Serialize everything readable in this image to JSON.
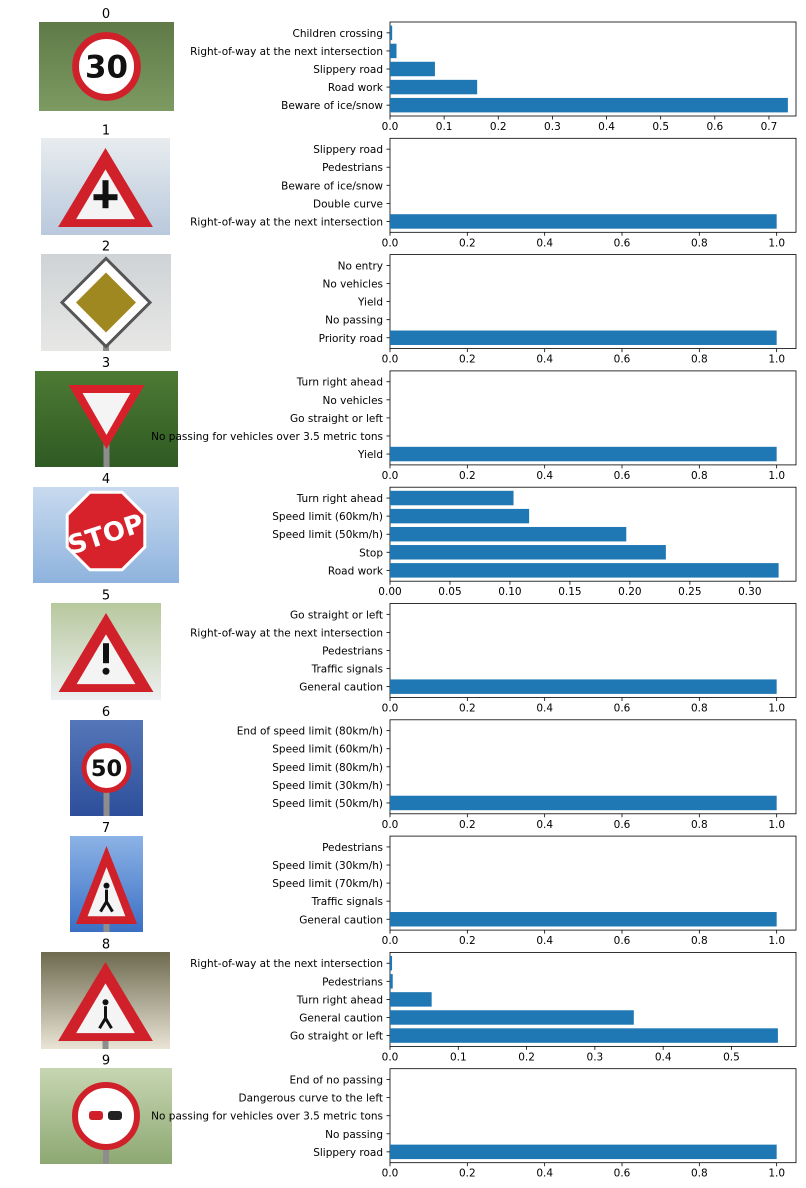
{
  "colors": {
    "bar": "#1f77b4",
    "axis": "#000000"
  },
  "chart_data": [
    {
      "type": "bar",
      "orientation": "horizontal",
      "image_title": "0",
      "sign_image": "speed-limit-30-sign",
      "categories": [
        "Beware of ice/snow",
        "Road work",
        "Slippery road",
        "Right-of-way at the next intersection",
        "Children crossing"
      ],
      "values": [
        0.735,
        0.161,
        0.083,
        0.012,
        0.004
      ],
      "xlim": [
        0,
        0.75
      ],
      "xticks": [
        0,
        0.1,
        0.2,
        0.3,
        0.4,
        0.5,
        0.6,
        0.7
      ],
      "xtick_labels": [
        "0.0",
        "0.1",
        "0.2",
        "0.3",
        "0.4",
        "0.5",
        "0.6",
        "0.7"
      ]
    },
    {
      "type": "bar",
      "orientation": "horizontal",
      "image_title": "1",
      "sign_image": "right-of-way-sign",
      "categories": [
        "Right-of-way at the next intersection",
        "Double curve",
        "Beware of ice/snow",
        "Pedestrians",
        "Slippery road"
      ],
      "values": [
        1.0,
        0,
        0,
        0,
        0
      ],
      "xlim": [
        0,
        1.05
      ],
      "xticks": [
        0,
        0.2,
        0.4,
        0.6,
        0.8,
        1.0
      ],
      "xtick_labels": [
        "0.0",
        "0.2",
        "0.4",
        "0.6",
        "0.8",
        "1.0"
      ]
    },
    {
      "type": "bar",
      "orientation": "horizontal",
      "image_title": "2",
      "sign_image": "priority-road-sign",
      "categories": [
        "Priority road",
        "No passing",
        "Yield",
        "No vehicles",
        "No entry"
      ],
      "values": [
        1.0,
        0,
        0,
        0,
        0
      ],
      "xlim": [
        0,
        1.05
      ],
      "xticks": [
        0,
        0.2,
        0.4,
        0.6,
        0.8,
        1.0
      ],
      "xtick_labels": [
        "0.0",
        "0.2",
        "0.4",
        "0.6",
        "0.8",
        "1.0"
      ]
    },
    {
      "type": "bar",
      "orientation": "horizontal",
      "image_title": "3",
      "sign_image": "yield-sign",
      "categories": [
        "Yield",
        "No passing for vehicles over 3.5 metric tons",
        "Go straight or left",
        "No vehicles",
        "Turn right ahead"
      ],
      "values": [
        1.0,
        0,
        0,
        0,
        0
      ],
      "xlim": [
        0,
        1.05
      ],
      "xticks": [
        0,
        0.2,
        0.4,
        0.6,
        0.8,
        1.0
      ],
      "xtick_labels": [
        "0.0",
        "0.2",
        "0.4",
        "0.6",
        "0.8",
        "1.0"
      ]
    },
    {
      "type": "bar",
      "orientation": "horizontal",
      "image_title": "4",
      "sign_image": "stop-sign",
      "categories": [
        "Road work",
        "Stop",
        "Speed limit (50km/h)",
        "Speed limit (60km/h)",
        "Turn right ahead"
      ],
      "values": [
        0.324,
        0.23,
        0.197,
        0.116,
        0.103
      ],
      "xlim": [
        0,
        0.3385
      ],
      "xticks": [
        0,
        0.05,
        0.1,
        0.15,
        0.2,
        0.25,
        0.3
      ],
      "xtick_labels": [
        "0.00",
        "0.05",
        "0.10",
        "0.15",
        "0.20",
        "0.25",
        "0.30"
      ]
    },
    {
      "type": "bar",
      "orientation": "horizontal",
      "image_title": "5",
      "sign_image": "general-caution-sign",
      "categories": [
        "General caution",
        "Traffic signals",
        "Pedestrians",
        "Right-of-way at the next intersection",
        "Go straight or left"
      ],
      "values": [
        1.0,
        0,
        0,
        0,
        0
      ],
      "xlim": [
        0,
        1.05
      ],
      "xticks": [
        0,
        0.2,
        0.4,
        0.6,
        0.8,
        1.0
      ],
      "xtick_labels": [
        "0.0",
        "0.2",
        "0.4",
        "0.6",
        "0.8",
        "1.0"
      ]
    },
    {
      "type": "bar",
      "orientation": "horizontal",
      "image_title": "6",
      "sign_image": "speed-limit-50-sign",
      "categories": [
        "Speed limit (50km/h)",
        "Speed limit (30km/h)",
        "Speed limit (80km/h)",
        "Speed limit (60km/h)",
        "End of speed limit (80km/h)"
      ],
      "values": [
        1.0,
        0,
        0,
        0,
        0
      ],
      "xlim": [
        0,
        1.05
      ],
      "xticks": [
        0,
        0.2,
        0.4,
        0.6,
        0.8,
        1.0
      ],
      "xtick_labels": [
        "0.0",
        "0.2",
        "0.4",
        "0.6",
        "0.8",
        "1.0"
      ]
    },
    {
      "type": "bar",
      "orientation": "horizontal",
      "image_title": "7",
      "sign_image": "pedestrians-sign",
      "categories": [
        "General caution",
        "Traffic signals",
        "Speed limit (70km/h)",
        "Speed limit (30km/h)",
        "Pedestrians"
      ],
      "values": [
        1.0,
        0,
        0,
        0,
        0
      ],
      "xlim": [
        0,
        1.05
      ],
      "xticks": [
        0,
        0.2,
        0.4,
        0.6,
        0.8,
        1.0
      ],
      "xtick_labels": [
        "0.0",
        "0.2",
        "0.4",
        "0.6",
        "0.8",
        "1.0"
      ]
    },
    {
      "type": "bar",
      "orientation": "horizontal",
      "image_title": "8",
      "sign_image": "children-crossing-sign",
      "categories": [
        "Go straight or left",
        "General caution",
        "Turn right ahead",
        "Pedestrians",
        "Right-of-way at the next intersection"
      ],
      "values": [
        0.568,
        0.357,
        0.061,
        0.004,
        0.003
      ],
      "xlim": [
        0,
        0.5945
      ],
      "xticks": [
        0,
        0.1,
        0.2,
        0.3,
        0.4,
        0.5
      ],
      "xtick_labels": [
        "0.0",
        "0.1",
        "0.2",
        "0.3",
        "0.4",
        "0.5"
      ]
    },
    {
      "type": "bar",
      "orientation": "horizontal",
      "image_title": "9",
      "sign_image": "no-passing-sign",
      "categories": [
        "Slippery road",
        "No passing",
        "No passing for vehicles over 3.5 metric tons",
        "Dangerous curve to the left",
        "End of no passing"
      ],
      "values": [
        1.0,
        0,
        0,
        0,
        0
      ],
      "xlim": [
        0,
        1.05
      ],
      "xticks": [
        0,
        0.2,
        0.4,
        0.6,
        0.8,
        1.0
      ],
      "xtick_labels": [
        "0.0",
        "0.2",
        "0.4",
        "0.6",
        "0.8",
        "1.0"
      ]
    }
  ]
}
